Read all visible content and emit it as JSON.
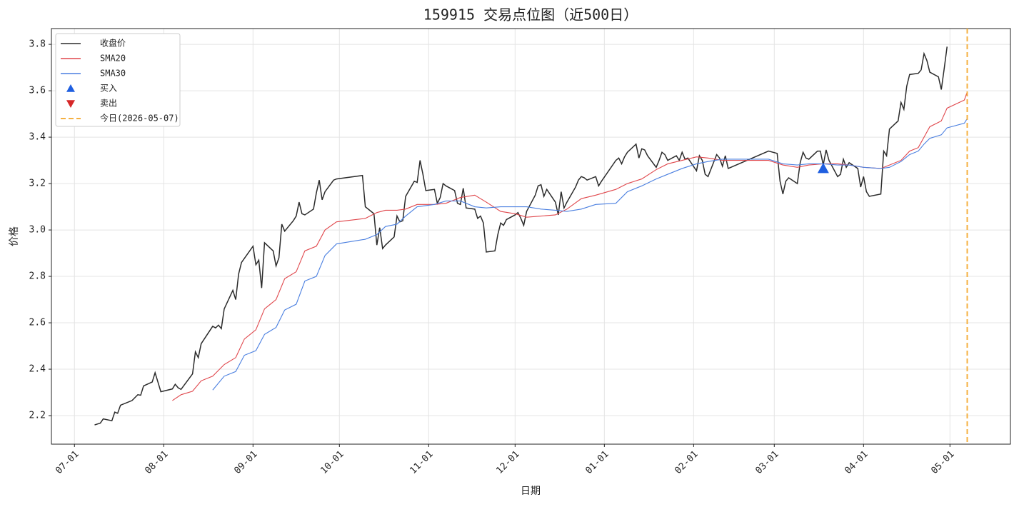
{
  "chart_data": {
    "type": "line",
    "title": "159915 交易点位图（近500日）",
    "xlabel": "日期",
    "ylabel": "价格",
    "xlim": [
      "06-23",
      "05-22"
    ],
    "xticks": [
      "07-01",
      "08-01",
      "09-01",
      "10-01",
      "11-01",
      "12-01",
      "01-01",
      "02-01",
      "03-01",
      "04-01",
      "05-01"
    ],
    "ylim": [
      2.077,
      3.868
    ],
    "yticks": [
      2.2,
      2.4,
      2.6,
      2.8,
      {
        "value": 3,
        "label": "3.0"
      },
      3.2,
      3.4,
      3.6,
      3.8
    ],
    "grid": true,
    "legend": "upper-left",
    "series": [
      {
        "name": "收盘价",
        "type": "line",
        "color": "#2b2b2b",
        "x": [
          "07-08",
          "07-10",
          "07-11",
          "07-14",
          "07-15",
          "07-16",
          "07-17",
          "07-21",
          "07-23",
          "07-24",
          "07-25",
          "07-28",
          "07-29",
          "07-31",
          "08-04",
          "08-05",
          "08-06",
          "08-07",
          "08-11",
          "08-12",
          "08-13",
          "08-14",
          "08-18",
          "08-19",
          "08-20",
          "08-21",
          "08-22",
          "08-25",
          "08-26",
          "08-27",
          "08-28",
          "09-01",
          "09-02",
          "09-03",
          "09-04",
          "09-05",
          "09-08",
          "09-09",
          "09-10",
          "09-11",
          "09-12",
          "09-15",
          "09-16",
          "09-17",
          "09-18",
          "09-19",
          "09-22",
          "09-23",
          "09-24",
          "09-25",
          "09-26",
          "09-29",
          "09-30",
          "10-09",
          "10-10",
          "10-13",
          "10-14",
          "10-15",
          "10-16",
          "10-17",
          "10-20",
          "10-21",
          "10-22",
          "10-23",
          "10-24",
          "10-27",
          "10-28",
          "10-29",
          "10-30",
          "10-31",
          "11-03",
          "11-04",
          "11-05",
          "11-06",
          "11-07",
          "11-10",
          "11-11",
          "11-12",
          "11-13",
          "11-14",
          "11-17",
          "11-18",
          "11-19",
          "11-20",
          "11-21",
          "11-24",
          "11-25",
          "11-26",
          "11-27",
          "11-28",
          "12-01",
          "12-02",
          "12-03",
          "12-04",
          "12-05",
          "12-08",
          "12-09",
          "12-10",
          "12-11",
          "12-12",
          "12-15",
          "12-16",
          "12-17",
          "12-18",
          "12-19",
          "12-22",
          "12-23",
          "12-24",
          "12-25",
          "12-26",
          "12-29",
          "12-30",
          "12-31",
          "01-05",
          "01-06",
          "01-07",
          "01-08",
          "01-09",
          "01-12",
          "01-13",
          "01-14",
          "01-15",
          "01-16",
          "01-19",
          "01-20",
          "01-21",
          "01-22",
          "01-23",
          "01-26",
          "01-27",
          "01-28",
          "01-29",
          "01-30",
          "02-02",
          "02-03",
          "02-04",
          "02-05",
          "02-06",
          "02-09",
          "02-10",
          "02-11",
          "02-12",
          "02-13",
          "02-27",
          "03-02",
          "03-03",
          "03-04",
          "03-05",
          "03-06",
          "03-09",
          "03-10",
          "03-11",
          "03-12",
          "03-13",
          "03-16",
          "03-17",
          "03-18",
          "03-19",
          "03-20",
          "03-23",
          "03-24",
          "03-25",
          "03-26",
          "03-27",
          "03-30",
          "03-31",
          "04-01",
          "04-02",
          "04-03",
          "04-07",
          "04-08",
          "04-09",
          "04-10",
          "04-13",
          "04-14",
          "04-15",
          "04-16",
          "04-17",
          "04-20",
          "04-21",
          "04-22",
          "04-23",
          "04-24",
          "04-27",
          "04-28",
          "04-29",
          "04-30"
        ],
        "values": [
          2.16,
          2.168,
          2.186,
          2.178,
          2.215,
          2.21,
          2.245,
          2.265,
          2.29,
          2.288,
          2.328,
          2.345,
          2.385,
          2.303,
          2.315,
          2.335,
          2.32,
          2.313,
          2.38,
          2.475,
          2.45,
          2.51,
          2.585,
          2.578,
          2.59,
          2.575,
          2.66,
          2.74,
          2.7,
          2.81,
          2.86,
          2.93,
          2.85,
          2.87,
          2.75,
          2.945,
          2.91,
          2.845,
          2.88,
          3.025,
          2.995,
          3.04,
          3.06,
          3.12,
          3.07,
          3.065,
          3.09,
          3.16,
          3.215,
          3.13,
          3.165,
          3.215,
          3.22,
          3.235,
          3.1,
          3.07,
          2.935,
          3.01,
          2.92,
          2.935,
          2.97,
          3.06,
          3.035,
          3.04,
          3.145,
          3.21,
          3.205,
          3.3,
          3.24,
          3.17,
          3.175,
          3.115,
          3.14,
          3.2,
          3.19,
          3.17,
          3.115,
          3.11,
          3.18,
          3.095,
          3.09,
          3.05,
          3.06,
          3.03,
          2.905,
          2.91,
          2.98,
          3.03,
          3.02,
          3.045,
          3.065,
          3.075,
          3.05,
          3.02,
          3.08,
          3.15,
          3.19,
          3.195,
          3.145,
          3.175,
          3.12,
          3.065,
          3.165,
          3.095,
          3.12,
          3.185,
          3.215,
          3.23,
          3.225,
          3.215,
          3.23,
          3.19,
          3.21,
          3.3,
          3.31,
          3.285,
          3.315,
          3.335,
          3.37,
          3.31,
          3.35,
          3.345,
          3.32,
          3.27,
          3.3,
          3.335,
          3.325,
          3.3,
          3.32,
          3.3,
          3.335,
          3.305,
          3.31,
          3.255,
          3.32,
          3.3,
          3.24,
          3.23,
          3.325,
          3.31,
          3.275,
          3.32,
          3.265,
          3.34,
          3.33,
          3.21,
          3.155,
          3.21,
          3.225,
          3.2,
          3.29,
          3.335,
          3.31,
          3.305,
          3.34,
          3.34,
          3.28,
          3.345,
          3.3,
          3.23,
          3.24,
          3.305,
          3.27,
          3.29,
          3.265,
          3.185,
          3.23,
          3.165,
          3.145,
          3.155,
          3.34,
          3.32,
          3.435,
          3.47,
          3.55,
          3.52,
          3.62,
          3.67,
          3.675,
          3.69,
          3.76,
          3.73,
          3.68,
          3.66,
          3.605,
          3.695,
          3.79
        ]
      },
      {
        "name": "SMA20",
        "type": "line",
        "color": "#e0474c",
        "x": [
          "08-04",
          "08-07",
          "08-11",
          "08-14",
          "08-18",
          "08-22",
          "08-26",
          "08-29",
          "09-02",
          "09-05",
          "09-09",
          "09-12",
          "09-16",
          "09-19",
          "09-23",
          "09-26",
          "09-30",
          "10-10",
          "10-14",
          "10-17",
          "10-21",
          "10-24",
          "10-28",
          "11-03",
          "11-07",
          "11-12",
          "11-17",
          "11-21",
          "11-26",
          "12-01",
          "12-05",
          "12-10",
          "12-15",
          "12-19",
          "12-24",
          "12-29",
          "01-05",
          "01-09",
          "01-14",
          "01-19",
          "01-23",
          "01-28",
          "02-02",
          "02-06",
          "02-11",
          "02-27",
          "03-04",
          "03-09",
          "03-13",
          "03-18",
          "03-23",
          "03-27",
          "04-01",
          "04-07",
          "04-10",
          "04-14",
          "04-17",
          "04-20",
          "04-22",
          "04-24",
          "04-28",
          "04-30",
          "05-06",
          "05-07"
        ],
        "values": [
          2.265,
          2.29,
          2.305,
          2.35,
          2.37,
          2.42,
          2.45,
          2.53,
          2.57,
          2.66,
          2.7,
          2.79,
          2.82,
          2.91,
          2.93,
          3.0,
          3.035,
          3.05,
          3.075,
          3.085,
          3.085,
          3.09,
          3.11,
          3.11,
          3.115,
          3.14,
          3.15,
          3.12,
          3.08,
          3.07,
          3.055,
          3.06,
          3.065,
          3.09,
          3.135,
          3.15,
          3.175,
          3.2,
          3.22,
          3.26,
          3.285,
          3.3,
          3.315,
          3.31,
          3.3,
          3.3,
          3.28,
          3.27,
          3.28,
          3.285,
          3.285,
          3.28,
          3.27,
          3.265,
          3.28,
          3.3,
          3.34,
          3.355,
          3.4,
          3.445,
          3.47,
          3.525,
          3.56,
          3.595
        ]
      },
      {
        "name": "SMA30",
        "type": "line",
        "color": "#4a7fe0",
        "x": [
          "08-18",
          "08-22",
          "08-26",
          "08-29",
          "09-02",
          "09-05",
          "09-09",
          "09-12",
          "09-16",
          "09-19",
          "09-23",
          "09-26",
          "09-30",
          "10-10",
          "10-14",
          "10-17",
          "10-21",
          "10-24",
          "10-28",
          "11-03",
          "11-07",
          "11-12",
          "11-17",
          "11-21",
          "11-26",
          "12-01",
          "12-05",
          "12-10",
          "12-15",
          "12-19",
          "12-24",
          "12-29",
          "01-05",
          "01-09",
          "01-14",
          "01-19",
          "01-23",
          "01-28",
          "02-02",
          "02-06",
          "02-11",
          "02-27",
          "03-04",
          "03-09",
          "03-13",
          "03-18",
          "03-23",
          "03-27",
          "04-01",
          "04-07",
          "04-10",
          "04-14",
          "04-17",
          "04-20",
          "04-22",
          "04-24",
          "04-28",
          "04-30",
          "05-06",
          "05-07"
        ],
        "values": [
          2.31,
          2.37,
          2.39,
          2.46,
          2.48,
          2.55,
          2.58,
          2.655,
          2.68,
          2.78,
          2.8,
          2.89,
          2.94,
          2.96,
          2.98,
          3.015,
          3.025,
          3.06,
          3.1,
          3.11,
          3.125,
          3.125,
          3.1,
          3.095,
          3.1,
          3.1,
          3.1,
          3.09,
          3.085,
          3.08,
          3.09,
          3.11,
          3.115,
          3.165,
          3.19,
          3.22,
          3.24,
          3.265,
          3.285,
          3.295,
          3.305,
          3.305,
          3.285,
          3.28,
          3.285,
          3.285,
          3.28,
          3.28,
          3.27,
          3.265,
          3.27,
          3.295,
          3.325,
          3.34,
          3.37,
          3.395,
          3.41,
          3.44,
          3.46,
          3.48
        ]
      },
      {
        "name": "买入",
        "type": "scatter",
        "marker": "up",
        "color": "#1f5fe0",
        "x": [
          "03-18"
        ],
        "values": [
          3.265
        ]
      },
      {
        "name": "卖出",
        "type": "scatter",
        "marker": "down",
        "color": "#d62728",
        "x": [],
        "values": []
      }
    ],
    "today": {
      "name": "今日(2026-05-07)",
      "color": "#f5b041",
      "x": "05-07"
    }
  }
}
